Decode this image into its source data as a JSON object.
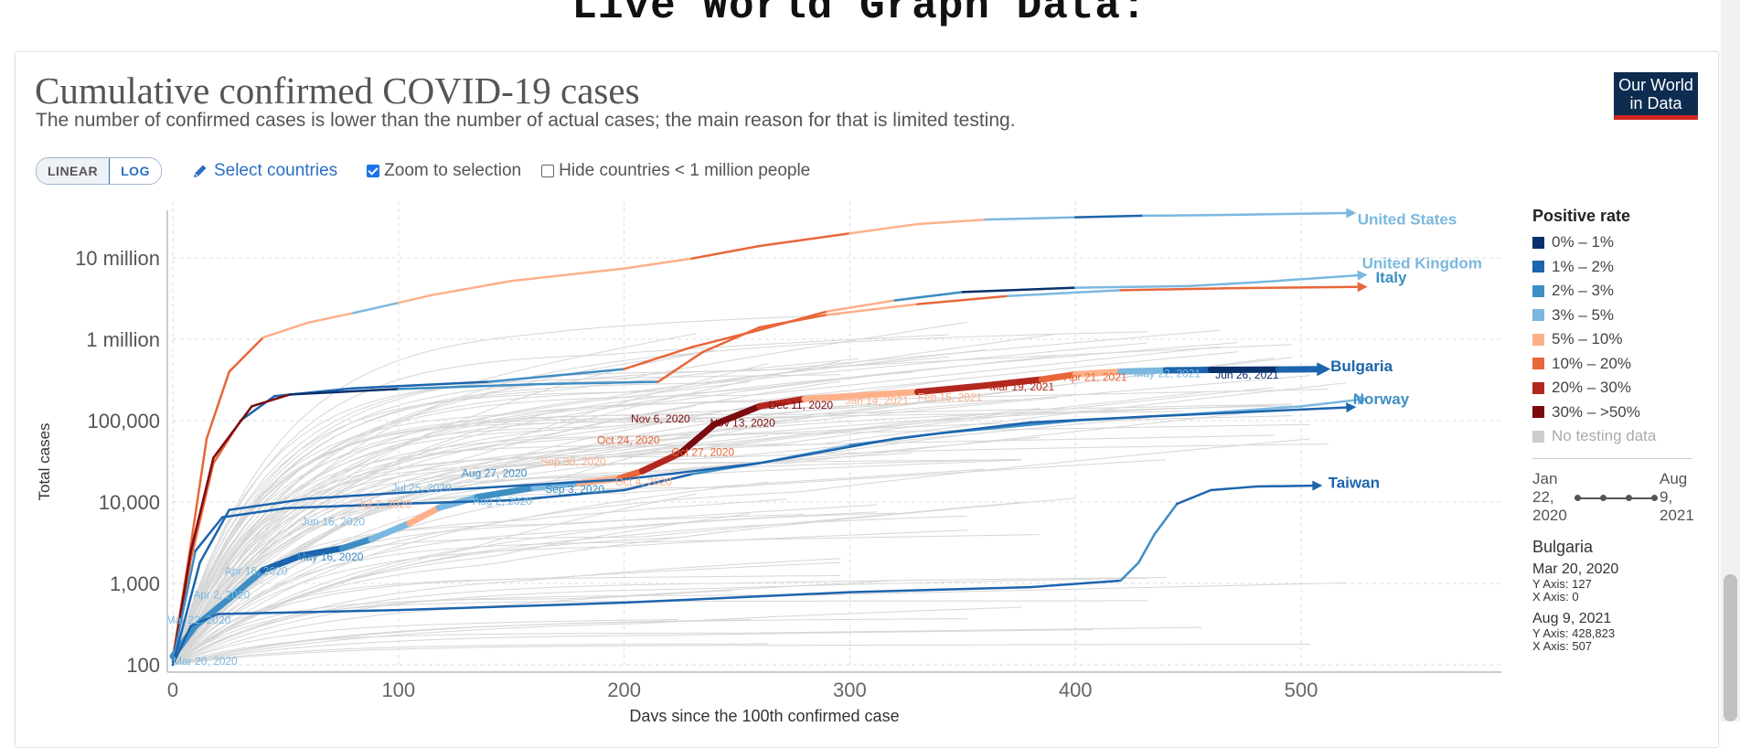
{
  "page": {
    "heading": "Live World Graph Data:"
  },
  "header": {
    "title": "Cumulative confirmed COVID-19 cases",
    "subtitle": "The number of confirmed cases is lower than the number of actual cases; the main reason for that is limited testing.",
    "logo_line1": "Our World",
    "logo_line2": "in Data"
  },
  "controls": {
    "linear_label": "LINEAR",
    "log_label": "LOG",
    "active_scale": "LOG",
    "select_countries": "Select countries",
    "zoom_label": "Zoom to selection",
    "zoom_checked": true,
    "hide_label": "Hide countries < 1 million people",
    "hide_checked": false
  },
  "legend": {
    "title": "Positive rate",
    "items": [
      {
        "label": "0% – 1%",
        "color": "#08306b"
      },
      {
        "label": "1% – 2%",
        "color": "#1c64ad"
      },
      {
        "label": "2% – 3%",
        "color": "#3e8ec4"
      },
      {
        "label": "3% – 5%",
        "color": "#7ab8df"
      },
      {
        "label": "5% – 10%",
        "color": "#fcb08a"
      },
      {
        "label": "10% – 20%",
        "color": "#e8663a"
      },
      {
        "label": "20% – 30%",
        "color": "#b3281e"
      },
      {
        "label": "30% – >50%",
        "color": "#7a0b0f"
      }
    ],
    "nodata_label": "No testing data",
    "nodata_color": "#cccccc"
  },
  "timeline": {
    "start": "Jan 22, 2020",
    "end": "Aug 9, 2021"
  },
  "info": {
    "country": "Bulgaria",
    "start_date": "Mar 20, 2020",
    "start_y": "Y Axis: 127",
    "start_x": "X Axis: 0",
    "end_date": "Aug 9, 2021",
    "end_y": "Y Axis: 428,823",
    "end_x": "X Axis: 507"
  },
  "chart_data": {
    "type": "line",
    "xlabel": "Days since the 100th confirmed case",
    "ylabel": "Total cases",
    "xlim": [
      0,
      580
    ],
    "ylim": [
      100,
      40000000
    ],
    "yscale": "log",
    "x_ticks": [
      0,
      100,
      200,
      300,
      400,
      500
    ],
    "y_ticks": [
      {
        "value": 100,
        "label": "100"
      },
      {
        "value": 1000,
        "label": "1,000"
      },
      {
        "value": 10000,
        "label": "10,000"
      },
      {
        "value": 100000,
        "label": "100,000"
      },
      {
        "value": 1000000,
        "label": "1 million"
      },
      {
        "value": 10000000,
        "label": "10 million"
      }
    ],
    "grid": true,
    "series": [
      {
        "name": "United States",
        "end_marker": "arrow",
        "points": [
          {
            "x": 0,
            "y": 120,
            "c": "#e8663a"
          },
          {
            "x": 8,
            "y": 3000,
            "c": "#e8663a"
          },
          {
            "x": 15,
            "y": 60000,
            "c": "#e8663a"
          },
          {
            "x": 25,
            "y": 400000,
            "c": "#e8663a"
          },
          {
            "x": 40,
            "y": 1050000,
            "c": "#e8663a"
          },
          {
            "x": 60,
            "y": 1600000,
            "c": "#fcb08a"
          },
          {
            "x": 80,
            "y": 2100000,
            "c": "#fcb08a"
          },
          {
            "x": 100,
            "y": 2800000,
            "c": "#7ab8df"
          },
          {
            "x": 115,
            "y": 3500000,
            "c": "#fcb08a"
          },
          {
            "x": 150,
            "y": 5200000,
            "c": "#fcb08a"
          },
          {
            "x": 200,
            "y": 7400000,
            "c": "#fcb08a"
          },
          {
            "x": 230,
            "y": 9800000,
            "c": "#fcb08a"
          },
          {
            "x": 260,
            "y": 14000000,
            "c": "#e8663a"
          },
          {
            "x": 300,
            "y": 20000000,
            "c": "#e8663a"
          },
          {
            "x": 330,
            "y": 26000000,
            "c": "#fcb08a"
          },
          {
            "x": 360,
            "y": 29500000,
            "c": "#fcb08a"
          },
          {
            "x": 400,
            "y": 31500000,
            "c": "#7ab8df"
          },
          {
            "x": 430,
            "y": 33000000,
            "c": "#1c64ad"
          },
          {
            "x": 460,
            "y": 33500000,
            "c": "#7ab8df"
          },
          {
            "x": 520,
            "y": 35500000,
            "c": "#7ab8df"
          }
        ]
      },
      {
        "name": "United Kingdom",
        "end_marker": "arrow",
        "points": [
          {
            "x": 0,
            "y": 110,
            "c": "#e8663a"
          },
          {
            "x": 8,
            "y": 2000,
            "c": "#e8663a"
          },
          {
            "x": 18,
            "y": 30000,
            "c": "#e8663a"
          },
          {
            "x": 30,
            "y": 100000,
            "c": "#e8663a"
          },
          {
            "x": 45,
            "y": 200000,
            "c": "#1c64ad"
          },
          {
            "x": 80,
            "y": 250000,
            "c": "#1c64ad"
          },
          {
            "x": 140,
            "y": 300000,
            "c": "#1c64ad"
          },
          {
            "x": 200,
            "y": 430000,
            "c": "#3e8ec4"
          },
          {
            "x": 230,
            "y": 800000,
            "c": "#e8663a"
          },
          {
            "x": 260,
            "y": 1300000,
            "c": "#e8663a"
          },
          {
            "x": 290,
            "y": 2200000,
            "c": "#e8663a"
          },
          {
            "x": 320,
            "y": 3000000,
            "c": "#fcb08a"
          },
          {
            "x": 350,
            "y": 3800000,
            "c": "#3e8ec4"
          },
          {
            "x": 400,
            "y": 4300000,
            "c": "#08306b"
          },
          {
            "x": 450,
            "y": 4500000,
            "c": "#7ab8df"
          },
          {
            "x": 480,
            "y": 5000000,
            "c": "#7ab8df"
          },
          {
            "x": 525,
            "y": 6100000,
            "c": "#7ab8df"
          }
        ]
      },
      {
        "name": "Italy",
        "end_marker": "arrow",
        "points": [
          {
            "x": 0,
            "y": 110,
            "c": "#7a0b0f"
          },
          {
            "x": 8,
            "y": 2500,
            "c": "#7a0b0f"
          },
          {
            "x": 18,
            "y": 35000,
            "c": "#7a0b0f"
          },
          {
            "x": 35,
            "y": 150000,
            "c": "#7a0b0f"
          },
          {
            "x": 52,
            "y": 210000,
            "c": "#7a0b0f"
          },
          {
            "x": 100,
            "y": 245000,
            "c": "#08306b"
          },
          {
            "x": 160,
            "y": 280000,
            "c": "#3e8ec4"
          },
          {
            "x": 215,
            "y": 300000,
            "c": "#3e8ec4"
          },
          {
            "x": 235,
            "y": 700000,
            "c": "#e8663a"
          },
          {
            "x": 260,
            "y": 1400000,
            "c": "#e8663a"
          },
          {
            "x": 290,
            "y": 2000000,
            "c": "#e8663a"
          },
          {
            "x": 330,
            "y": 2700000,
            "c": "#fcb08a"
          },
          {
            "x": 370,
            "y": 3400000,
            "c": "#e8663a"
          },
          {
            "x": 420,
            "y": 4000000,
            "c": "#7ab8df"
          },
          {
            "x": 470,
            "y": 4250000,
            "c": "#e8663a"
          },
          {
            "x": 525,
            "y": 4400000,
            "c": "#e8663a"
          }
        ]
      },
      {
        "name": "Bulgaria",
        "end_marker": "arrow",
        "points": [
          {
            "x": 0,
            "y": 127,
            "c": "#3e8ec4"
          },
          {
            "x": 10,
            "y": 300,
            "c": "#3e8ec4"
          },
          {
            "x": 25,
            "y": 650,
            "c": "#3e8ec4"
          },
          {
            "x": 40,
            "y": 1450,
            "c": "#3e8ec4"
          },
          {
            "x": 57,
            "y": 2200,
            "c": "#1c64ad"
          },
          {
            "x": 75,
            "y": 2700,
            "c": "#1c64ad"
          },
          {
            "x": 88,
            "y": 3500,
            "c": "#3e8ec4"
          },
          {
            "x": 105,
            "y": 5500,
            "c": "#7ab8df"
          },
          {
            "x": 118,
            "y": 8500,
            "c": "#fcb08a"
          },
          {
            "x": 135,
            "y": 11500,
            "c": "#7ab8df"
          },
          {
            "x": 160,
            "y": 15000,
            "c": "#3e8ec4"
          },
          {
            "x": 180,
            "y": 17000,
            "c": "#7ab8df"
          },
          {
            "x": 198,
            "y": 19500,
            "c": "#fcb08a"
          },
          {
            "x": 208,
            "y": 24000,
            "c": "#e8663a"
          },
          {
            "x": 225,
            "y": 40000,
            "c": "#b3281e"
          },
          {
            "x": 240,
            "y": 90000,
            "c": "#7a0b0f"
          },
          {
            "x": 260,
            "y": 150000,
            "c": "#7a0b0f"
          },
          {
            "x": 280,
            "y": 185000,
            "c": "#b3281e"
          },
          {
            "x": 300,
            "y": 200000,
            "c": "#fcb08a"
          },
          {
            "x": 330,
            "y": 225000,
            "c": "#fcb08a"
          },
          {
            "x": 360,
            "y": 270000,
            "c": "#b3281e"
          },
          {
            "x": 385,
            "y": 320000,
            "c": "#b3281e"
          },
          {
            "x": 400,
            "y": 370000,
            "c": "#e8663a"
          },
          {
            "x": 420,
            "y": 400000,
            "c": "#fcb08a"
          },
          {
            "x": 440,
            "y": 415000,
            "c": "#7ab8df"
          },
          {
            "x": 460,
            "y": 420000,
            "c": "#1c64ad"
          },
          {
            "x": 490,
            "y": 425000,
            "c": "#08306b"
          },
          {
            "x": 507,
            "y": 428823,
            "c": "#1c64ad"
          }
        ]
      },
      {
        "name": "Norway",
        "end_marker": "arrow",
        "points": [
          {
            "x": 0,
            "y": 110,
            "c": "#3e8ec4"
          },
          {
            "x": 10,
            "y": 2500,
            "c": "#3e8ec4"
          },
          {
            "x": 22,
            "y": 6500,
            "c": "#1c64ad"
          },
          {
            "x": 50,
            "y": 8400,
            "c": "#1c64ad"
          },
          {
            "x": 100,
            "y": 9500,
            "c": "#1c64ad"
          },
          {
            "x": 150,
            "y": 10500,
            "c": "#1c64ad"
          },
          {
            "x": 200,
            "y": 14000,
            "c": "#1c64ad"
          },
          {
            "x": 230,
            "y": 22000,
            "c": "#1c64ad"
          },
          {
            "x": 260,
            "y": 30000,
            "c": "#3e8ec4"
          },
          {
            "x": 300,
            "y": 50000,
            "c": "#7ab8df"
          },
          {
            "x": 340,
            "y": 70000,
            "c": "#3e8ec4"
          },
          {
            "x": 400,
            "y": 100000,
            "c": "#3e8ec4"
          },
          {
            "x": 450,
            "y": 120000,
            "c": "#7ab8df"
          },
          {
            "x": 500,
            "y": 150000,
            "c": "#7ab8df"
          },
          {
            "x": 525,
            "y": 180000,
            "c": "#7ab8df"
          }
        ]
      },
      {
        "name": "",
        "end_marker": "arrow",
        "points": [
          {
            "x": 0,
            "y": 100,
            "c": "#1c64ad"
          },
          {
            "x": 12,
            "y": 1800,
            "c": "#1c64ad"
          },
          {
            "x": 25,
            "y": 8000,
            "c": "#1c64ad"
          },
          {
            "x": 60,
            "y": 11000,
            "c": "#1c64ad"
          },
          {
            "x": 120,
            "y": 14000,
            "c": "#1c64ad"
          },
          {
            "x": 200,
            "y": 19000,
            "c": "#1c64ad"
          },
          {
            "x": 260,
            "y": 30000,
            "c": "#1c64ad"
          },
          {
            "x": 320,
            "y": 60000,
            "c": "#1c64ad"
          },
          {
            "x": 380,
            "y": 95000,
            "c": "#1c64ad"
          },
          {
            "x": 440,
            "y": 115000,
            "c": "#1c64ad"
          },
          {
            "x": 520,
            "y": 145000,
            "c": "#1c64ad"
          }
        ]
      },
      {
        "name": "Taiwan",
        "end_marker": "arrow",
        "points": [
          {
            "x": 0,
            "y": 100,
            "c": "#1c64ad"
          },
          {
            "x": 8,
            "y": 300,
            "c": "#1c64ad"
          },
          {
            "x": 20,
            "y": 420,
            "c": "#1c64ad"
          },
          {
            "x": 100,
            "y": 470,
            "c": "#1c64ad"
          },
          {
            "x": 200,
            "y": 580,
            "c": "#1c64ad"
          },
          {
            "x": 300,
            "y": 780,
            "c": "#1c64ad"
          },
          {
            "x": 380,
            "y": 900,
            "c": "#1c64ad"
          },
          {
            "x": 420,
            "y": 1080,
            "c": "#1c64ad"
          },
          {
            "x": 428,
            "y": 1800,
            "c": "#3e8ec4"
          },
          {
            "x": 435,
            "y": 4000,
            "c": "#3e8ec4"
          },
          {
            "x": 445,
            "y": 9500,
            "c": "#3e8ec4"
          },
          {
            "x": 460,
            "y": 14000,
            "c": "#1c64ad"
          },
          {
            "x": 480,
            "y": 15500,
            "c": "#1c64ad"
          },
          {
            "x": 505,
            "y": 15900,
            "c": "#1c64ad"
          }
        ]
      }
    ],
    "series_labels": [
      {
        "text": "United States",
        "x": 525,
        "y": 30000000,
        "color": "#7ab8df"
      },
      {
        "text": "United Kingdom",
        "x": 527,
        "y": 8700000,
        "color": "#7ab8df"
      },
      {
        "text": "Italy",
        "x": 533,
        "y": 5800000,
        "color": "#3e8ec4"
      },
      {
        "text": "Bulgaria",
        "x": 513,
        "y": 470000,
        "color": "#1c64ad"
      },
      {
        "text": "Norway",
        "x": 523,
        "y": 185000,
        "color": "#3e8ec4"
      },
      {
        "text": "Taiwan",
        "x": 512,
        "y": 17500,
        "color": "#1c64ad"
      }
    ],
    "annotations": [
      {
        "text": "Mar 20, 2020",
        "x": 0,
        "y": 100,
        "color": "#7ab8df"
      },
      {
        "text": "Mar 22, 2020",
        "x": -3,
        "y": 320,
        "color": "#7ab8df"
      },
      {
        "text": "Apr 2, 2020",
        "x": 9,
        "y": 650,
        "color": "#7ab8df"
      },
      {
        "text": "Apr 16, 2020",
        "x": 23,
        "y": 1280,
        "color": "#7ab8df"
      },
      {
        "text": "May 16, 2020",
        "x": 55,
        "y": 1900,
        "color": "#3e8ec4"
      },
      {
        "text": "Jun 16, 2020",
        "x": 57,
        "y": 5200,
        "color": "#7ab8df"
      },
      {
        "text": "Jul 7, 2020",
        "x": 82,
        "y": 8500,
        "color": "#fcb08a"
      },
      {
        "text": "Jul 25, 2020",
        "x": 97,
        "y": 13500,
        "color": "#7ab8df"
      },
      {
        "text": "Aug 2, 2020",
        "x": 133,
        "y": 9200,
        "color": "#7ab8df"
      },
      {
        "text": "Aug 27, 2020",
        "x": 128,
        "y": 20500,
        "color": "#3e8ec4"
      },
      {
        "text": "Sep 3, 2020",
        "x": 165,
        "y": 13000,
        "color": "#3e8ec4"
      },
      {
        "text": "Sep 30, 2020",
        "x": 163,
        "y": 28000,
        "color": "#fcb08a"
      },
      {
        "text": "Oct 4, 2020",
        "x": 196,
        "y": 16000,
        "color": "#fcb08a"
      },
      {
        "text": "Oct 24, 2020",
        "x": 188,
        "y": 52000,
        "color": "#e8663a"
      },
      {
        "text": "Oct 27, 2020",
        "x": 221,
        "y": 37000,
        "color": "#e8663a"
      },
      {
        "text": "Nov 6, 2020",
        "x": 203,
        "y": 95000,
        "color": "#7a0b0f"
      },
      {
        "text": "Nov 13, 2020",
        "x": 238,
        "y": 85000,
        "color": "#7a0b0f"
      },
      {
        "text": "Dec 11, 2020",
        "x": 264,
        "y": 140000,
        "color": "#7a0b0f"
      },
      {
        "text": "Jan 14, 2021",
        "x": 298,
        "y": 160000,
        "color": "#fcb08a"
      },
      {
        "text": "Feb 15, 2021",
        "x": 330,
        "y": 175000,
        "color": "#fcb08a"
      },
      {
        "text": "Mar 19, 2021",
        "x": 362,
        "y": 235000,
        "color": "#b3281e"
      },
      {
        "text": "Apr 21, 2021",
        "x": 395,
        "y": 310000,
        "color": "#e8663a"
      },
      {
        "text": "May 22, 2021",
        "x": 426,
        "y": 340000,
        "color": "#7ab8df"
      },
      {
        "text": "Jun 26, 2021",
        "x": 462,
        "y": 330000,
        "color": "#08306b"
      }
    ]
  }
}
